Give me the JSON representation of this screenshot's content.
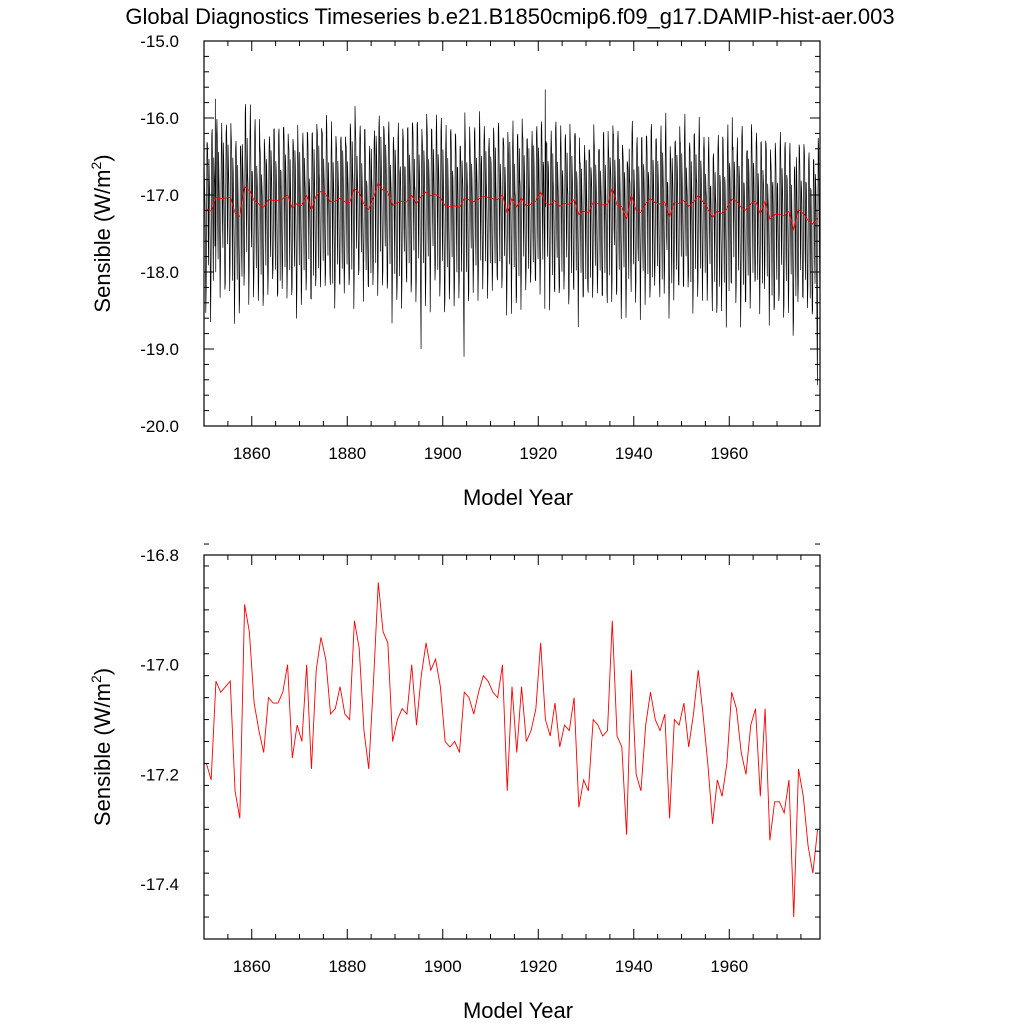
{
  "title": "Global Diagnostics Timeseries b.e21.B1850cmip6.f09_g17.DAMIP-hist-aer.003",
  "colors": {
    "monthly": "#000000",
    "annual": "#ff0000"
  },
  "chart_data": [
    {
      "type": "line",
      "xlabel": "Model Year",
      "ylabel_main": "Sensible (W/m",
      "ylabel_sup": "2",
      "ylabel_close": ")",
      "xlim": [
        1850,
        1979
      ],
      "ylim": [
        -20.0,
        -15.0
      ],
      "xticks": [
        1860,
        1880,
        1900,
        1920,
        1940,
        1960
      ],
      "xtick_labels": [
        "1860",
        "1880",
        "1900",
        "1920",
        "1940",
        "1960"
      ],
      "yticks": [
        -20.0,
        -19.0,
        -18.0,
        -17.0,
        -16.0,
        -15.0
      ],
      "ytick_labels": [
        "-20.0",
        "-19.0",
        "-18.0",
        "-17.0",
        "-16.0",
        "-15.0"
      ],
      "series": [
        {
          "key": "monthly",
          "style": "monthly cycle",
          "x_start": 1850,
          "years": 129,
          "annual_peak": -16.2,
          "annual_trough": -18.55,
          "notable_minima": [
            {
              "x": 1895.5,
              "y": -19.0
            },
            {
              "x": 1904.5,
              "y": -19.1
            },
            {
              "x": 1978.5,
              "y": -19.47
            }
          ],
          "notable_maxima": [
            {
              "x": 1921.5,
              "y": -15.63
            },
            {
              "x": 1852.4,
              "y": -15.75
            }
          ]
        },
        {
          "key": "annual",
          "style": "annual mean",
          "source": "chart_data.1.series.0.values"
        }
      ]
    },
    {
      "type": "line",
      "xlabel": "Model Year",
      "ylabel_main": "Sensible (W/m",
      "ylabel_sup": "2",
      "ylabel_close": ")",
      "xlim": [
        1850,
        1979
      ],
      "ylim": [
        -17.5,
        -16.8
      ],
      "xticks": [
        1860,
        1880,
        1900,
        1920,
        1940,
        1960
      ],
      "xtick_labels": [
        "1860",
        "1880",
        "1900",
        "1920",
        "1940",
        "1960"
      ],
      "yticks": [
        -17.4,
        -17.2,
        -17.0,
        -16.8
      ],
      "ytick_labels": [
        "-17.4",
        "-17.2",
        "-17.0",
        "-16.8"
      ],
      "series": [
        {
          "key": "annual",
          "x_start": 1850,
          "values": [
            -17.18,
            -17.21,
            -17.03,
            -17.05,
            -17.04,
            -17.03,
            -17.23,
            -17.28,
            -16.89,
            -16.94,
            -17.07,
            -17.12,
            -17.16,
            -17.06,
            -17.07,
            -17.07,
            -17.05,
            -17.0,
            -17.17,
            -17.11,
            -17.14,
            -17.0,
            -17.19,
            -17.01,
            -16.95,
            -16.99,
            -17.09,
            -17.08,
            -17.04,
            -17.09,
            -17.1,
            -16.92,
            -16.97,
            -17.12,
            -17.19,
            -17.03,
            -16.85,
            -16.94,
            -16.96,
            -17.14,
            -17.1,
            -17.08,
            -17.09,
            -17.0,
            -17.11,
            -17.02,
            -16.96,
            -17.01,
            -16.99,
            -17.04,
            -17.14,
            -17.15,
            -17.14,
            -17.16,
            -17.05,
            -17.06,
            -17.09,
            -17.05,
            -17.02,
            -17.03,
            -17.05,
            -17.06,
            -17.0,
            -17.23,
            -17.04,
            -17.16,
            -17.04,
            -17.14,
            -17.12,
            -17.08,
            -16.96,
            -17.1,
            -17.13,
            -17.07,
            -17.15,
            -17.11,
            -17.12,
            -17.06,
            -17.26,
            -17.21,
            -17.23,
            -17.1,
            -17.11,
            -17.13,
            -17.12,
            -16.92,
            -17.13,
            -17.15,
            -17.31,
            -17.01,
            -17.2,
            -17.23,
            -17.11,
            -17.05,
            -17.1,
            -17.12,
            -17.09,
            -17.28,
            -17.1,
            -17.11,
            -17.07,
            -17.15,
            -17.09,
            -17.01,
            -17.09,
            -17.18,
            -17.29,
            -17.21,
            -17.24,
            -17.18,
            -17.05,
            -17.08,
            -17.16,
            -17.2,
            -17.11,
            -17.08,
            -17.24,
            -17.08,
            -17.32,
            -17.25,
            -17.25,
            -17.27,
            -17.21,
            -17.46,
            -17.19,
            -17.24,
            -17.33,
            -17.38,
            -17.3
          ]
        }
      ]
    }
  ]
}
